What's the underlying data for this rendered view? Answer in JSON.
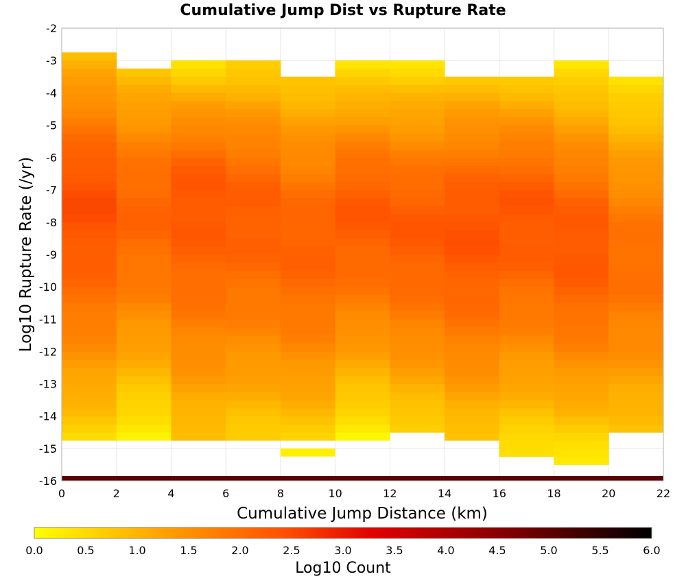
{
  "chart_data": {
    "type": "heatmap",
    "title": "Cumulative Jump Dist vs Rupture Rate",
    "xlabel": "Cumulative Jump Distance (km)",
    "ylabel": "Log10 Rupture Rate (/yr)",
    "xlim": [
      0,
      22
    ],
    "ylim": [
      -16,
      -2
    ],
    "xticks": [
      0,
      2,
      4,
      6,
      8,
      10,
      12,
      14,
      16,
      18,
      20,
      22
    ],
    "yticks": [
      -2,
      -3,
      -4,
      -5,
      -6,
      -7,
      -8,
      -9,
      -10,
      -11,
      -12,
      -13,
      -14,
      -15,
      -16
    ],
    "x_bin_width": 2,
    "y_bin_height": 0.25,
    "grid": true,
    "colorbar": {
      "label": "Log10 Count",
      "min": 0.0,
      "max": 6.0,
      "ticks": [
        "0.0",
        "0.5",
        "1.0",
        "1.5",
        "2.0",
        "2.5",
        "3.0",
        "3.5",
        "4.0",
        "4.5",
        "5.0",
        "5.5",
        "6.0"
      ],
      "colors": [
        "#ffff00",
        "#ffa500",
        "#ff5200",
        "#e00000",
        "#7a0000",
        "#000000"
      ]
    },
    "bottom_band": {
      "y_range": [
        -16,
        -15.85
      ],
      "x_range": [
        0,
        22
      ],
      "value": 5.0
    },
    "columns": [
      {
        "x0": 0,
        "top": -2.75,
        "bottom": -14.75,
        "peak_y": -7.2,
        "peak": 2.45,
        "top_val": 0.85,
        "bottom_val": 0.5
      },
      {
        "x0": 2,
        "top": -3.25,
        "bottom": -14.75,
        "peak_y": -7.5,
        "peak": 2.15,
        "top_val": 0.75,
        "bottom_val": 0.1
      },
      {
        "x0": 4,
        "top": -3.0,
        "bottom": -14.75,
        "peak_y": -7.0,
        "peak": 2.35,
        "top_val": 0.35,
        "bottom_val": 0.75
      },
      {
        "x0": 6,
        "top": -3.0,
        "bottom": -14.75,
        "peak_y": -7.5,
        "peak": 2.25,
        "top_val": 0.55,
        "bottom_val": 0.6
      },
      {
        "x0": 8,
        "top": -3.5,
        "bottom": -14.75,
        "peak_y": -8.5,
        "peak": 2.2,
        "top_val": 0.7,
        "bottom_val": 0.6
      },
      {
        "x0": 10,
        "top": -3.0,
        "bottom": -14.75,
        "peak_y": -7.5,
        "peak": 2.3,
        "top_val": 0.3,
        "bottom_val": 0.1
      },
      {
        "x0": 12,
        "top": -3.0,
        "bottom": -14.5,
        "peak_y": -8.0,
        "peak": 2.3,
        "top_val": 0.35,
        "bottom_val": 0.5
      },
      {
        "x0": 14,
        "top": -3.5,
        "bottom": -14.75,
        "peak_y": -8.0,
        "peak": 2.4,
        "top_val": 0.75,
        "bottom_val": 0.7
      },
      {
        "x0": 16,
        "top": -3.5,
        "bottom": -15.25,
        "peak_y": -7.5,
        "peak": 2.35,
        "top_val": 0.65,
        "bottom_val": 0.3
      },
      {
        "x0": 18,
        "top": -3.0,
        "bottom": -15.5,
        "peak_y": -8.5,
        "peak": 2.35,
        "top_val": 0.25,
        "bottom_val": 0.2
      },
      {
        "x0": 20,
        "top": -3.5,
        "bottom": -14.5,
        "peak_y": -9.0,
        "peak": 2.0,
        "top_val": 0.3,
        "bottom_val": 0.7
      }
    ],
    "extra_cells": [
      {
        "x0": 8,
        "y0": -15.25,
        "y1": -15.0,
        "value": 0.2
      }
    ]
  }
}
